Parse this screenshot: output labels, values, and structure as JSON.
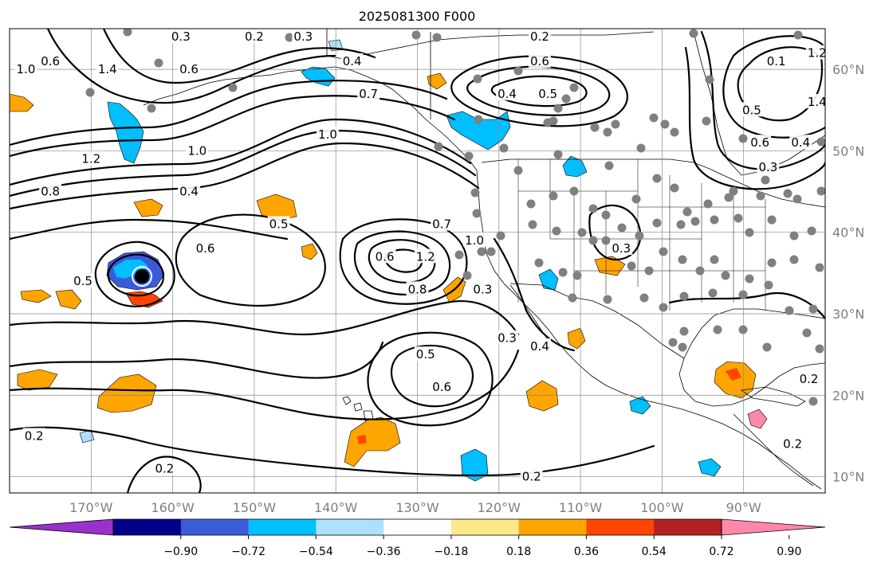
{
  "title": "2025081300 F000",
  "map": {
    "lon_range": [
      -180,
      -80
    ],
    "lat_range": [
      8,
      65
    ],
    "gridlines": true,
    "longitude_labels": [
      "170°W",
      "160°W",
      "150°W",
      "140°W",
      "130°W",
      "120°W",
      "110°W",
      "100°W",
      "90°W"
    ],
    "latitude_labels": [
      "60°N",
      "50°N",
      "40°N",
      "30°N",
      "20°N",
      "10°N"
    ]
  },
  "contour_labels": [
    {
      "text": "0.3",
      "lon": -159,
      "lat": 64
    },
    {
      "text": "0.2",
      "lon": -150,
      "lat": 64
    },
    {
      "text": "0.3",
      "lon": -144,
      "lat": 64
    },
    {
      "text": "0.2",
      "lon": -115,
      "lat": 64
    },
    {
      "text": "0.6",
      "lon": -175,
      "lat": 61
    },
    {
      "text": "1.0",
      "lon": -178,
      "lat": 60
    },
    {
      "text": "1.4",
      "lon": -168,
      "lat": 60
    },
    {
      "text": "0.6",
      "lon": -158,
      "lat": 60
    },
    {
      "text": "0.4",
      "lon": -138,
      "lat": 61
    },
    {
      "text": "0.7",
      "lon": -136,
      "lat": 57
    },
    {
      "text": "0.6",
      "lon": -115,
      "lat": 61
    },
    {
      "text": "0.4",
      "lon": -119,
      "lat": 57
    },
    {
      "text": "0.5",
      "lon": -114,
      "lat": 57
    },
    {
      "text": "1.0",
      "lon": -141,
      "lat": 52
    },
    {
      "text": "1.2",
      "lon": -170,
      "lat": 49
    },
    {
      "text": "1.0",
      "lon": -157,
      "lat": 50
    },
    {
      "text": "0.8",
      "lon": -175,
      "lat": 45
    },
    {
      "text": "0.4",
      "lon": -158,
      "lat": 45
    },
    {
      "text": "0.5",
      "lon": -147,
      "lat": 41
    },
    {
      "text": "0.6",
      "lon": -156,
      "lat": 38
    },
    {
      "text": "0.7",
      "lon": -127,
      "lat": 41
    },
    {
      "text": "1.0",
      "lon": -123,
      "lat": 39
    },
    {
      "text": "0.6",
      "lon": -134,
      "lat": 37
    },
    {
      "text": "1.2",
      "lon": -129,
      "lat": 37
    },
    {
      "text": "0.8",
      "lon": -130,
      "lat": 33
    },
    {
      "text": "0.5",
      "lon": -171,
      "lat": 34
    },
    {
      "text": "0.3",
      "lon": -122,
      "lat": 33
    },
    {
      "text": "0.3",
      "lon": -105,
      "lat": 38
    },
    {
      "text": "0.3",
      "lon": -119,
      "lat": 27
    },
    {
      "text": "0.4",
      "lon": -115,
      "lat": 26
    },
    {
      "text": "0.5",
      "lon": -129,
      "lat": 25
    },
    {
      "text": "0.6",
      "lon": -127,
      "lat": 21
    },
    {
      "text": "0.2",
      "lon": -177,
      "lat": 15
    },
    {
      "text": "0.2",
      "lon": -161,
      "lat": 11
    },
    {
      "text": "0.2",
      "lon": -116,
      "lat": 10
    },
    {
      "text": "0.5",
      "lon": -89,
      "lat": 55
    },
    {
      "text": "0.6",
      "lon": -88,
      "lat": 51
    },
    {
      "text": "0.3",
      "lon": -87,
      "lat": 48
    },
    {
      "text": "1.2",
      "lon": -81,
      "lat": 62
    },
    {
      "text": "1.4",
      "lon": -81,
      "lat": 56
    },
    {
      "text": "0.4",
      "lon": -83,
      "lat": 51
    },
    {
      "text": "0.1",
      "lon": -86,
      "lat": 61
    },
    {
      "text": "0.2",
      "lon": -82,
      "lat": 22
    },
    {
      "text": "0.2",
      "lon": -84,
      "lat": 14
    }
  ],
  "colorbar": {
    "colors": [
      "#9932cc",
      "#00008b",
      "#3b5bd9",
      "#00bfff",
      "#afe0ff",
      "#ffffff",
      "#ffe88c",
      "#ffa500",
      "#ff4500",
      "#b22222",
      "#ff88aa"
    ],
    "tick_labels": [
      "−0.90",
      "−0.72",
      "−0.54",
      "−0.36",
      "−0.18",
      "0.18",
      "0.36",
      "0.54",
      "0.72",
      "0.90"
    ]
  }
}
